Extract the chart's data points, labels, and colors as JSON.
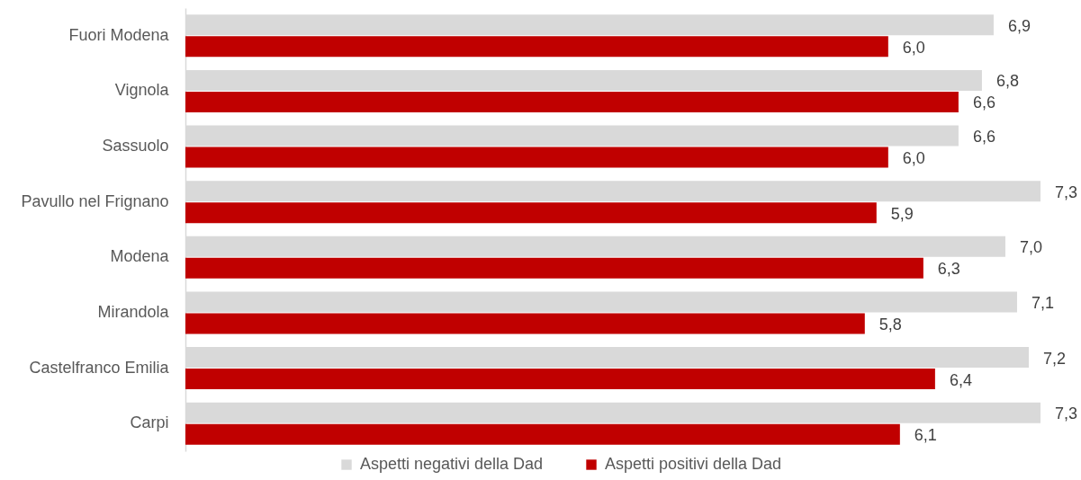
{
  "chart_data": {
    "type": "bar",
    "orientation": "horizontal",
    "categories": [
      "Fuori Modena",
      "Vignola",
      "Sassuolo",
      "Pavullo nel Frignano",
      "Modena",
      "Mirandola",
      "Castelfranco Emilia",
      "Carpi"
    ],
    "series": [
      {
        "name": "Aspetti negativi della Dad",
        "color": "#d9d9d9",
        "values": [
          6.9,
          6.8,
          6.6,
          7.3,
          7.0,
          7.1,
          7.2,
          7.3
        ],
        "value_labels": [
          "6,9",
          "6,8",
          "6,6",
          "7,3",
          "7,0",
          "7,1",
          "7,2",
          "7,3"
        ]
      },
      {
        "name": "Aspetti positivi della Dad",
        "color": "#c00000",
        "values": [
          6.0,
          6.6,
          6.0,
          5.9,
          6.3,
          5.8,
          6.4,
          6.1
        ],
        "value_labels": [
          "6,0",
          "6,6",
          "6,0",
          "5,9",
          "6,3",
          "5,8",
          "6,4",
          "6,1"
        ]
      }
    ],
    "tick_labels": "y",
    "legend": "bottom"
  }
}
